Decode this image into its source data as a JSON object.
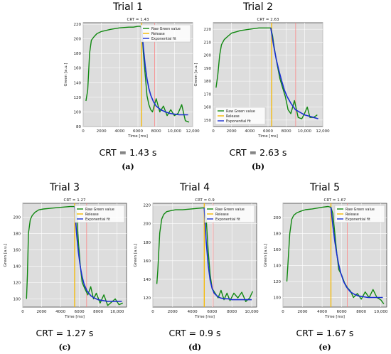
{
  "legend_labels": [
    "Raw Green value",
    "Release",
    "Exponential fit"
  ],
  "colors": {
    "raw": "#118811",
    "release": "#f5b800",
    "fit": "#1a2fd0",
    "marker": "#ff7b7b",
    "bg": "#dddddd",
    "grid": "#ffffff"
  },
  "chart_data": [
    {
      "type": "line",
      "title": "Trial 1",
      "subtitle": "CRT = 1.43",
      "xlabel": "Time [ms]",
      "ylabel": "Green [a.u.]",
      "xlim": [
        0,
        12000
      ],
      "ylim": [
        80,
        222
      ],
      "xticks": [
        0,
        2000,
        4000,
        6000,
        8000,
        10000,
        12000
      ],
      "xtick_labels": [
        "0",
        "2000",
        "4000",
        "6000",
        "8000",
        "10,000",
        "12,000"
      ],
      "yticks": [
        80,
        100,
        120,
        140,
        160,
        180,
        200,
        220
      ],
      "grid": true,
      "legend": "top-right",
      "release_x": 6400,
      "marker_x": 7830,
      "series": [
        {
          "name": "Raw Green value",
          "x": [
            300,
            500,
            700,
            900,
            1200,
            1500,
            2000,
            3000,
            4000,
            5000,
            5500,
            6000,
            6300,
            6450,
            6600,
            6800,
            7000,
            7200,
            7400,
            7600,
            8000,
            8400,
            8800,
            9200,
            9600,
            10000,
            10400,
            10800,
            11200,
            11600
          ],
          "y": [
            115,
            130,
            180,
            198,
            203,
            207,
            210,
            213,
            215,
            216,
            216,
            217,
            217,
            210,
            180,
            150,
            122,
            110,
            103,
            100,
            118,
            100,
            108,
            95,
            103,
            95,
            98,
            110,
            88,
            86
          ]
        },
        {
          "name": "Exponential fit",
          "x": [
            6400,
            6600,
            6800,
            7000,
            7200,
            7400,
            7700,
            8000,
            8500,
            9000,
            9500,
            10000,
            10500,
            11000,
            11500
          ],
          "y": [
            217,
            188,
            163,
            145,
            132,
            123,
            114,
            108,
            103,
            100,
            98,
            97,
            96,
            96,
            96
          ]
        }
      ],
      "crt_label": "CRT = 1.43 s",
      "caption": "(a)"
    },
    {
      "type": "line",
      "title": "Trial 2",
      "subtitle": "CRT = 2.63",
      "xlabel": "Time [ms]",
      "ylabel": "Green [a.u.]",
      "xlim": [
        0,
        12000
      ],
      "ylim": [
        145,
        225
      ],
      "xticks": [
        0,
        2000,
        4000,
        6000,
        8000,
        10000,
        12000
      ],
      "xtick_labels": [
        "0",
        "2000",
        "4000",
        "6000",
        "8000",
        "10,000",
        "12,000"
      ],
      "yticks": [
        150,
        160,
        170,
        180,
        190,
        200,
        210,
        220
      ],
      "grid": true,
      "legend": "bottom-left",
      "release_x": 6400,
      "marker_x": 9030,
      "series": [
        {
          "name": "Raw Green value",
          "x": [
            300,
            500,
            700,
            900,
            1200,
            1500,
            2000,
            2500,
            3000,
            4000,
            5000,
            5500,
            6000,
            6300,
            6500,
            6700,
            7000,
            7300,
            7600,
            7900,
            8200,
            8500,
            8900,
            9300,
            9700,
            10000,
            10300,
            10600,
            11000,
            11400
          ],
          "y": [
            175,
            185,
            200,
            208,
            212,
            214,
            217,
            218,
            219,
            220,
            221,
            221,
            221,
            221,
            215,
            205,
            193,
            182,
            175,
            168,
            158,
            155,
            165,
            152,
            151,
            155,
            160,
            152,
            152,
            154
          ]
        },
        {
          "name": "Exponential fit",
          "x": [
            6300,
            6600,
            6900,
            7200,
            7500,
            7800,
            8100,
            8500,
            9000,
            9500,
            10000,
            10500,
            11000,
            11500
          ],
          "y": [
            221,
            208,
            197,
            188,
            180,
            173,
            168,
            163,
            158,
            156,
            154,
            153,
            152,
            151
          ]
        }
      ],
      "crt_label": "CRT = 2.63 s",
      "caption": "(b)"
    },
    {
      "type": "line",
      "title": "Trial 3",
      "subtitle": "CRT = 1.27",
      "xlabel": "Time [ms]",
      "ylabel": "Green [a.u.]",
      "xlim": [
        0,
        11000
      ],
      "ylim": [
        90,
        217
      ],
      "xticks": [
        0,
        2000,
        4000,
        6000,
        8000,
        10000
      ],
      "xtick_labels": [
        "0",
        "2000",
        "4000",
        "6000",
        "8000",
        "10,000"
      ],
      "yticks": [
        100,
        120,
        140,
        160,
        180,
        200
      ],
      "grid": true,
      "legend": "top-right",
      "release_x": 5500,
      "marker_x": 6770,
      "series": [
        {
          "name": "Raw Green value",
          "x": [
            400,
            500,
            600,
            800,
            1000,
            1300,
            1700,
            2200,
            3000,
            4000,
            5000,
            5500,
            5700,
            5900,
            6100,
            6300,
            6600,
            6900,
            7200,
            7500,
            7800,
            8200,
            8600,
            9000,
            9400,
            9800,
            10200,
            10600
          ],
          "y": [
            100,
            130,
            180,
            197,
            202,
            206,
            209,
            210,
            211,
            212,
            213,
            213,
            205,
            170,
            140,
            120,
            112,
            105,
            115,
            100,
            107,
            95,
            105,
            92,
            96,
            100,
            93,
            95
          ]
        },
        {
          "name": "Exponential fit",
          "x": [
            5500,
            5700,
            5900,
            6100,
            6300,
            6500,
            6800,
            7200,
            7600,
            8000,
            8500,
            9000,
            9500,
            10000,
            10500
          ],
          "y": [
            213,
            180,
            157,
            139,
            127,
            118,
            110,
            104,
            101,
            99,
            98,
            97,
            97,
            97,
            97
          ]
        }
      ],
      "crt_label": "CRT = 1.27 s",
      "caption": "(c)"
    },
    {
      "type": "line",
      "title": "Trial 4",
      "subtitle": "CRT = 0.9",
      "xlabel": "Time [ms]",
      "ylabel": "Green [a.u.]",
      "xlim": [
        0,
        10500
      ],
      "ylim": [
        110,
        222
      ],
      "xticks": [
        0,
        2000,
        4000,
        6000,
        8000,
        10000
      ],
      "xtick_labels": [
        "0",
        "2000",
        "4000",
        "6000",
        "8000",
        "10,000"
      ],
      "yticks": [
        120,
        140,
        160,
        180,
        200,
        220
      ],
      "grid": true,
      "legend": "top-right",
      "release_x": 5200,
      "marker_x": 6100,
      "series": [
        {
          "name": "Raw Green value",
          "x": [
            400,
            500,
            700,
            900,
            1100,
            1400,
            1800,
            2300,
            3000,
            4000,
            5000,
            5200,
            5400,
            5600,
            5800,
            6000,
            6300,
            6600,
            6900,
            7200,
            7500,
            7800,
            8200,
            8600,
            9000,
            9400,
            9800,
            10100
          ],
          "y": [
            135,
            150,
            190,
            205,
            210,
            213,
            214,
            215,
            215,
            216,
            217,
            217,
            205,
            170,
            145,
            130,
            125,
            120,
            128,
            118,
            125,
            117,
            125,
            120,
            126,
            116,
            120,
            127
          ]
        },
        {
          "name": "Exponential fit",
          "x": [
            5200,
            5400,
            5600,
            5800,
            6000,
            6200,
            6500,
            6800,
            7200,
            7600,
            8000,
            8500,
            9000,
            9500,
            10000
          ],
          "y": [
            217,
            180,
            155,
            139,
            130,
            125,
            122,
            120,
            119,
            119,
            118,
            118,
            118,
            118,
            118
          ]
        }
      ],
      "crt_label": "CRT = 0.9 s",
      "caption": "(d)"
    },
    {
      "type": "line",
      "title": "Trial 5",
      "subtitle": "CRT = 1.67",
      "xlabel": "Time [ms]",
      "ylabel": "Green [a.u.]",
      "xlim": [
        0,
        10600
      ],
      "ylim": [
        88,
        218
      ],
      "xticks": [
        0,
        2000,
        4000,
        6000,
        8000,
        10000
      ],
      "xtick_labels": [
        "0",
        "2000",
        "4000",
        "6000",
        "8000",
        "10,000"
      ],
      "yticks": [
        100,
        120,
        140,
        160,
        180,
        200
      ],
      "grid": true,
      "legend": "top-right",
      "release_x": 4900,
      "marker_x": 6570,
      "series": [
        {
          "name": "Raw Green value",
          "x": [
            400,
            500,
            700,
            900,
            1100,
            1400,
            1800,
            2300,
            3000,
            4000,
            4600,
            4900,
            5100,
            5300,
            5500,
            5700,
            6000,
            6300,
            6600,
            6900,
            7200,
            7600,
            8000,
            8400,
            8800,
            9200,
            9600,
            10000,
            10300
          ],
          "y": [
            120,
            140,
            180,
            198,
            203,
            206,
            208,
            210,
            211,
            213,
            214,
            213,
            205,
            180,
            155,
            135,
            128,
            118,
            112,
            108,
            100,
            105,
            98,
            107,
            100,
            110,
            100,
            97,
            92
          ]
        },
        {
          "name": "Exponential fit",
          "x": [
            4900,
            5100,
            5300,
            5500,
            5700,
            5900,
            6200,
            6500,
            6900,
            7300,
            7700,
            8200,
            8700,
            9200,
            9700,
            10200
          ],
          "y": [
            213,
            190,
            170,
            154,
            141,
            131,
            120,
            113,
            107,
            104,
            102,
            101,
            100,
            100,
            100,
            100
          ]
        }
      ],
      "crt_label": "CRT = 1.67 s",
      "caption": "(e)"
    }
  ]
}
